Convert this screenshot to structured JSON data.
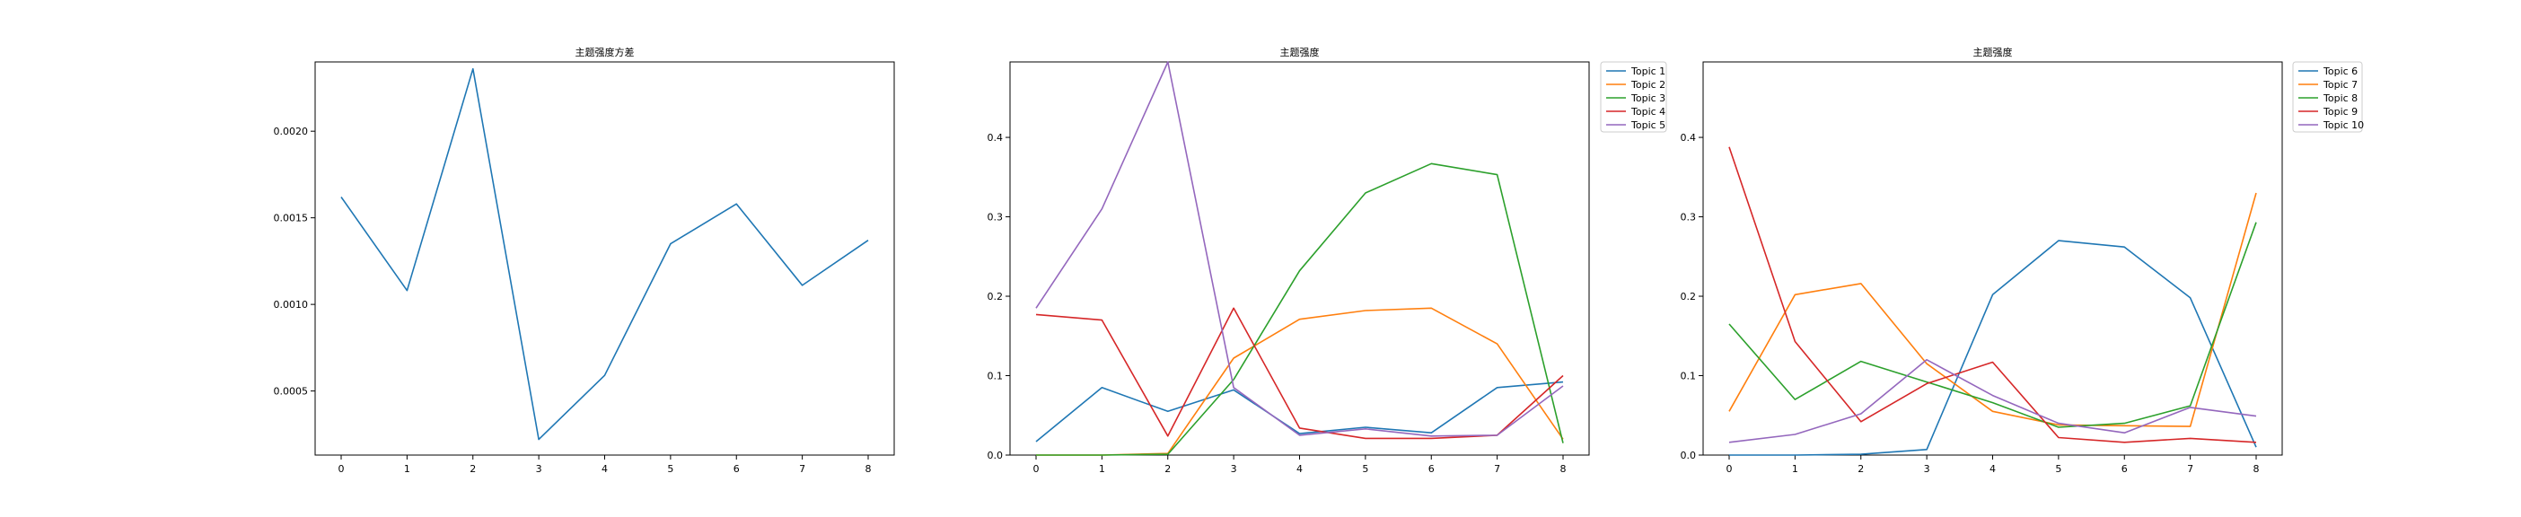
{
  "chart_data": [
    {
      "type": "line",
      "title": "主题强度方差",
      "x": [
        0,
        1,
        2,
        3,
        4,
        5,
        6,
        7,
        8
      ],
      "xticks": [
        "0",
        "1",
        "2",
        "3",
        "4",
        "5",
        "6",
        "7",
        "8"
      ],
      "ylim": [
        0.00013,
        0.0024
      ],
      "yticks": [
        "0.0005",
        "0.0010",
        "0.0015",
        "0.0020"
      ],
      "legend": "none",
      "series": [
        {
          "values": [
            0.00162,
            0.00108,
            0.00236,
            0.00022,
            0.00059,
            0.00135,
            0.00158,
            0.00111,
            0.00137
          ],
          "color": "#1f77b4"
        }
      ]
    },
    {
      "type": "line",
      "title": "主题强度",
      "x": [
        0,
        1,
        2,
        3,
        4,
        5,
        6,
        7,
        8
      ],
      "xticks": [
        "0",
        "1",
        "2",
        "3",
        "4",
        "5",
        "6",
        "7",
        "8"
      ],
      "ylim": [
        0,
        0.495
      ],
      "yticks": [
        "0.0",
        "0.1",
        "0.2",
        "0.3",
        "0.4"
      ],
      "legend": "outside upper right",
      "series": [
        {
          "name": "Topic 1",
          "color": "#1f77b4",
          "values": [
            0.017,
            0.085,
            0.055,
            0.082,
            0.027,
            0.035,
            0.028,
            0.085,
            0.092
          ]
        },
        {
          "name": "Topic 2",
          "color": "#ff7f0e",
          "values": [
            0.0,
            0.0,
            0.002,
            0.122,
            0.171,
            0.182,
            0.185,
            0.14,
            0.02
          ]
        },
        {
          "name": "Topic 3",
          "color": "#2ca02c",
          "values": [
            0.0,
            0.0,
            0.001,
            0.095,
            0.232,
            0.33,
            0.367,
            0.353,
            0.015
          ]
        },
        {
          "name": "Topic 4",
          "color": "#d62728",
          "values": [
            0.177,
            0.17,
            0.024,
            0.185,
            0.034,
            0.021,
            0.021,
            0.025,
            0.1
          ]
        },
        {
          "name": "Topic 5",
          "color": "#9467bd",
          "values": [
            0.185,
            0.31,
            0.495,
            0.085,
            0.025,
            0.033,
            0.024,
            0.025,
            0.087
          ]
        }
      ]
    },
    {
      "type": "line",
      "title": "主题强度",
      "x": [
        0,
        1,
        2,
        3,
        4,
        5,
        6,
        7,
        8
      ],
      "xticks": [
        "0",
        "1",
        "2",
        "3",
        "4",
        "5",
        "6",
        "7",
        "8"
      ],
      "ylim": [
        0,
        0.495
      ],
      "yticks": [
        "0.0",
        "0.1",
        "0.2",
        "0.3",
        "0.4"
      ],
      "legend": "outside upper right",
      "series": [
        {
          "name": "Topic 6",
          "color": "#1f77b4",
          "values": [
            0.0,
            0.0,
            0.001,
            0.007,
            0.202,
            0.27,
            0.262,
            0.198,
            0.01
          ]
        },
        {
          "name": "Topic 7",
          "color": "#ff7f0e",
          "values": [
            0.055,
            0.202,
            0.216,
            0.115,
            0.055,
            0.038,
            0.037,
            0.036,
            0.33
          ]
        },
        {
          "name": "Topic 8",
          "color": "#2ca02c",
          "values": [
            0.165,
            0.07,
            0.118,
            0.092,
            0.066,
            0.035,
            0.04,
            0.062,
            0.293
          ]
        },
        {
          "name": "Topic 9",
          "color": "#d62728",
          "values": [
            0.388,
            0.143,
            0.042,
            0.09,
            0.117,
            0.022,
            0.016,
            0.021,
            0.016
          ]
        },
        {
          "name": "Topic 10",
          "color": "#9467bd",
          "values": [
            0.016,
            0.026,
            0.052,
            0.12,
            0.075,
            0.04,
            0.028,
            0.06,
            0.049
          ]
        }
      ]
    }
  ]
}
